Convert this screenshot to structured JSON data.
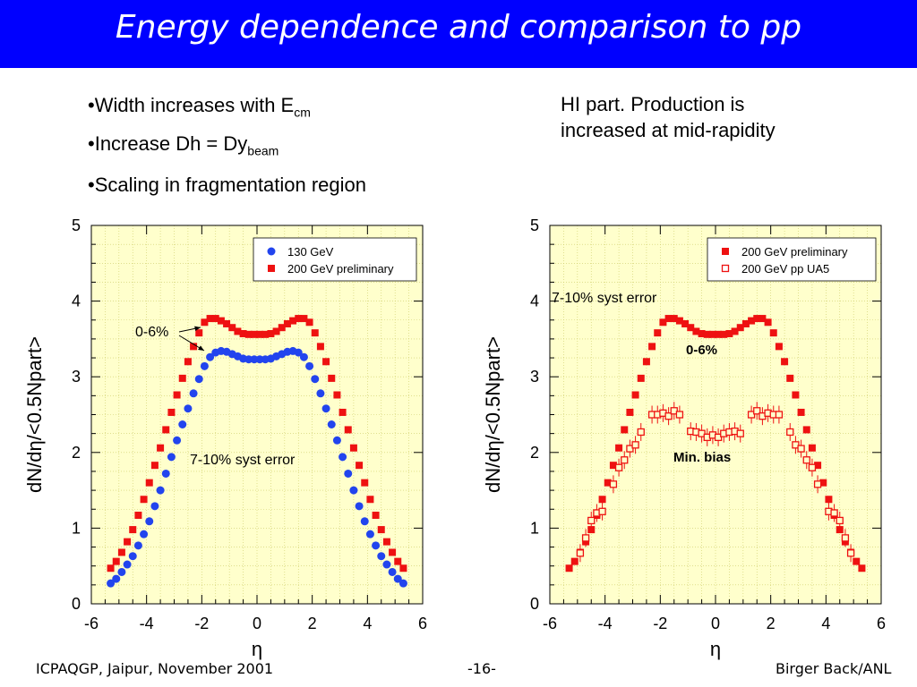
{
  "slide": {
    "title": "Energy dependence and comparison to pp",
    "bullets": [
      {
        "text": "•Width increases with E",
        "sub": "cm"
      },
      {
        "text": "•Increase Dh = Dy",
        "sub": "beam"
      },
      {
        "text": "•Scaling in fragmentation region",
        "sub": ""
      }
    ],
    "note_line1": "HI part. Production is",
    "note_line2": "increased at mid-rapidity",
    "footer_left": "ICPAQGP, Jaipur, November 2001",
    "footer_center": "-16-",
    "footer_right": "Birger Back/ANL"
  },
  "colors": {
    "title_bg": "#0000ff",
    "plot_bg": "#ffffcc",
    "grid": "#cccc66",
    "red": "#ee1111",
    "blue": "#2244ee"
  },
  "chart_data": [
    {
      "type": "scatter",
      "xlabel": "η",
      "ylabel": "dN/dη/<0.5Npart>",
      "xlim": [
        -6,
        6
      ],
      "ylim": [
        0,
        5
      ],
      "xticks": [
        "-6",
        "-4",
        "-2",
        "0",
        "2",
        "4",
        "6"
      ],
      "yticks": [
        "0",
        "1",
        "2",
        "3",
        "4",
        "5"
      ],
      "grid": true,
      "legend_position": "top-right",
      "annotations": [
        "0-6%",
        "7-10% syst error"
      ],
      "series": [
        {
          "name": "130 GeV",
          "marker": "circle",
          "color": "#2244ee",
          "x": [
            -5.3,
            -5.1,
            -4.9,
            -4.7,
            -4.5,
            -4.3,
            -4.1,
            -3.9,
            -3.7,
            -3.5,
            -3.3,
            -3.1,
            -2.9,
            -2.7,
            -2.5,
            -2.3,
            -2.1,
            -1.9,
            -1.7,
            -1.5,
            -1.3,
            -1.1,
            -0.9,
            -0.7,
            -0.5,
            -0.3,
            -0.1,
            0.1,
            0.3,
            0.5,
            0.7,
            0.9,
            1.1,
            1.3,
            1.5,
            1.7,
            1.9,
            2.1,
            2.3,
            2.5,
            2.7,
            2.9,
            3.1,
            3.3,
            3.5,
            3.7,
            3.9,
            4.1,
            4.3,
            4.5,
            4.7,
            4.9,
            5.1,
            5.3
          ],
          "y": [
            0.27,
            0.33,
            0.42,
            0.52,
            0.63,
            0.77,
            0.92,
            1.09,
            1.29,
            1.5,
            1.72,
            1.94,
            2.16,
            2.37,
            2.58,
            2.78,
            2.97,
            3.14,
            3.26,
            3.32,
            3.34,
            3.33,
            3.3,
            3.27,
            3.24,
            3.23,
            3.23,
            3.23,
            3.23,
            3.24,
            3.27,
            3.3,
            3.33,
            3.34,
            3.32,
            3.26,
            3.14,
            2.97,
            2.78,
            2.58,
            2.37,
            2.16,
            1.94,
            1.72,
            1.5,
            1.29,
            1.09,
            0.92,
            0.77,
            0.63,
            0.52,
            0.42,
            0.33,
            0.27
          ]
        },
        {
          "name": "200 GeV preliminary",
          "marker": "square",
          "color": "#ee1111",
          "x": [
            -5.3,
            -5.1,
            -4.9,
            -4.7,
            -4.5,
            -4.3,
            -4.1,
            -3.9,
            -3.7,
            -3.5,
            -3.3,
            -3.1,
            -2.9,
            -2.7,
            -2.5,
            -2.3,
            -2.1,
            -1.9,
            -1.7,
            -1.5,
            -1.3,
            -1.1,
            -0.9,
            -0.7,
            -0.5,
            -0.3,
            -0.1,
            0.1,
            0.3,
            0.5,
            0.7,
            0.9,
            1.1,
            1.3,
            1.5,
            1.7,
            1.9,
            2.1,
            2.3,
            2.5,
            2.7,
            2.9,
            3.1,
            3.3,
            3.5,
            3.7,
            3.9,
            4.1,
            4.3,
            4.5,
            4.7,
            4.9,
            5.1,
            5.3
          ],
          "y": [
            0.47,
            0.56,
            0.68,
            0.82,
            0.98,
            1.17,
            1.38,
            1.6,
            1.83,
            2.06,
            2.3,
            2.53,
            2.76,
            2.98,
            3.2,
            3.4,
            3.58,
            3.72,
            3.77,
            3.77,
            3.74,
            3.7,
            3.65,
            3.6,
            3.57,
            3.56,
            3.56,
            3.56,
            3.56,
            3.57,
            3.6,
            3.65,
            3.7,
            3.74,
            3.77,
            3.77,
            3.72,
            3.58,
            3.4,
            3.2,
            2.98,
            2.76,
            2.53,
            2.3,
            2.06,
            1.83,
            1.6,
            1.38,
            1.17,
            0.98,
            0.82,
            0.68,
            0.56,
            0.47
          ]
        }
      ]
    },
    {
      "type": "scatter",
      "xlabel": "η",
      "ylabel": "dN/dη/<0.5Npart>",
      "xlim": [
        -6,
        6
      ],
      "ylim": [
        0,
        5
      ],
      "xticks": [
        "-6",
        "-4",
        "-2",
        "0",
        "2",
        "4",
        "6"
      ],
      "yticks": [
        "0",
        "1",
        "2",
        "3",
        "4",
        "5"
      ],
      "grid": true,
      "legend_position": "top-right",
      "annotations": [
        "7-10% syst error",
        "0-6%",
        "Min. bias"
      ],
      "series": [
        {
          "name": "200 GeV preliminary",
          "marker": "square",
          "color": "#ee1111",
          "x": [
            -5.3,
            -5.1,
            -4.9,
            -4.7,
            -4.5,
            -4.3,
            -4.1,
            -3.9,
            -3.7,
            -3.5,
            -3.3,
            -3.1,
            -2.9,
            -2.7,
            -2.5,
            -2.3,
            -2.1,
            -1.9,
            -1.7,
            -1.5,
            -1.3,
            -1.1,
            -0.9,
            -0.7,
            -0.5,
            -0.3,
            -0.1,
            0.1,
            0.3,
            0.5,
            0.7,
            0.9,
            1.1,
            1.3,
            1.5,
            1.7,
            1.9,
            2.1,
            2.3,
            2.5,
            2.7,
            2.9,
            3.1,
            3.3,
            3.5,
            3.7,
            3.9,
            4.1,
            4.3,
            4.5,
            4.7,
            4.9,
            5.1,
            5.3
          ],
          "y": [
            0.47,
            0.56,
            0.68,
            0.82,
            0.98,
            1.17,
            1.38,
            1.6,
            1.83,
            2.06,
            2.3,
            2.53,
            2.76,
            2.98,
            3.2,
            3.4,
            3.58,
            3.72,
            3.77,
            3.77,
            3.74,
            3.7,
            3.65,
            3.6,
            3.57,
            3.56,
            3.56,
            3.56,
            3.56,
            3.57,
            3.6,
            3.65,
            3.7,
            3.74,
            3.77,
            3.77,
            3.72,
            3.58,
            3.4,
            3.2,
            2.98,
            2.76,
            2.53,
            2.3,
            2.06,
            1.83,
            1.6,
            1.38,
            1.17,
            0.98,
            0.82,
            0.68,
            0.56,
            0.47
          ]
        },
        {
          "name": "200 GeV pp UA5",
          "marker": "open-square",
          "color": "#ee1111",
          "x": [
            -4.9,
            -4.7,
            -4.5,
            -4.3,
            -4.1,
            -3.7,
            -3.5,
            -3.3,
            -3.1,
            -2.9,
            -2.7,
            -2.3,
            -2.1,
            -1.9,
            -1.7,
            -1.5,
            -1.3,
            -0.9,
            -0.7,
            -0.5,
            -0.3,
            -0.1,
            0.1,
            0.3,
            0.5,
            0.7,
            0.9,
            1.3,
            1.5,
            1.7,
            1.9,
            2.1,
            2.3,
            2.7,
            2.9,
            3.1,
            3.3,
            3.5,
            3.7,
            4.1,
            4.3,
            4.5,
            4.7,
            4.9
          ],
          "y": [
            0.67,
            0.87,
            1.1,
            1.2,
            1.22,
            1.58,
            1.8,
            1.9,
            2.05,
            2.1,
            2.27,
            2.5,
            2.5,
            2.52,
            2.48,
            2.55,
            2.5,
            2.28,
            2.27,
            2.25,
            2.2,
            2.23,
            2.2,
            2.25,
            2.27,
            2.28,
            2.25,
            2.5,
            2.55,
            2.48,
            2.52,
            2.5,
            2.5,
            2.27,
            2.1,
            2.05,
            1.9,
            1.8,
            1.58,
            1.22,
            1.2,
            1.1,
            0.87,
            0.67
          ]
        }
      ]
    }
  ]
}
